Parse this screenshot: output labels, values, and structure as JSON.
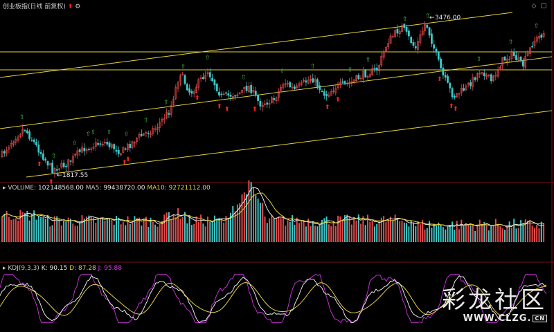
{
  "main_panel": {
    "title": "创业板指(日线 前复权)",
    "up_arrow_icon": "red-up-arrow-icon",
    "gear_icon": "gear-icon",
    "window_controls": [
      "◇",
      "□"
    ],
    "high_label": "3476.00",
    "low_label": "1817.55"
  },
  "volume_panel": {
    "volume_label": "VOLUME:",
    "volume_value": "102148568.00",
    "ma5_label": "MA5:",
    "ma5_value": "99438720.00",
    "ma10_label": "MA10:",
    "ma10_value": "92721112.00"
  },
  "kdj_panel": {
    "name": "KDJ(9,3,3)",
    "k_label": "K:",
    "k_value": "90.15",
    "d_label": "D:",
    "d_value": "87.28",
    "j_label": "J:",
    "j_value": "95.88"
  },
  "watermark": {
    "text": "彩龙社区",
    "url": "WWW.CLZG.",
    "cn": "CN"
  },
  "colors": {
    "up": "#e84a4a",
    "down": "#3ec8c8",
    "trendline": "#e6d23c",
    "hline": "#e6d23c",
    "ma_white": "#e8e8e8",
    "ma_yellow": "#e6d23c",
    "kdj_purple": "#c030d0",
    "signal_green": "#3ec03e",
    "signal_red": "#ff2020"
  },
  "chart_data": [
    {
      "type": "candlestick",
      "title": "创业板指(日线 前复权)",
      "price_range": [
        1700,
        3600
      ],
      "high_annotation": 3476.0,
      "low_annotation": 1817.55,
      "horizontal_levels": [
        3150,
        2980
      ],
      "trend_channel_note": "three parallel rising yellow trend lines"
    },
    {
      "type": "bar",
      "title": "VOLUME",
      "latest": {
        "VOLUME": 102148568.0,
        "MA5": 99438720.0,
        "MA10": 92721112.0
      }
    },
    {
      "type": "line",
      "title": "KDJ(9,3,3)",
      "latest": {
        "K": 90.15,
        "D": 87.28,
        "J": 95.88
      }
    }
  ]
}
